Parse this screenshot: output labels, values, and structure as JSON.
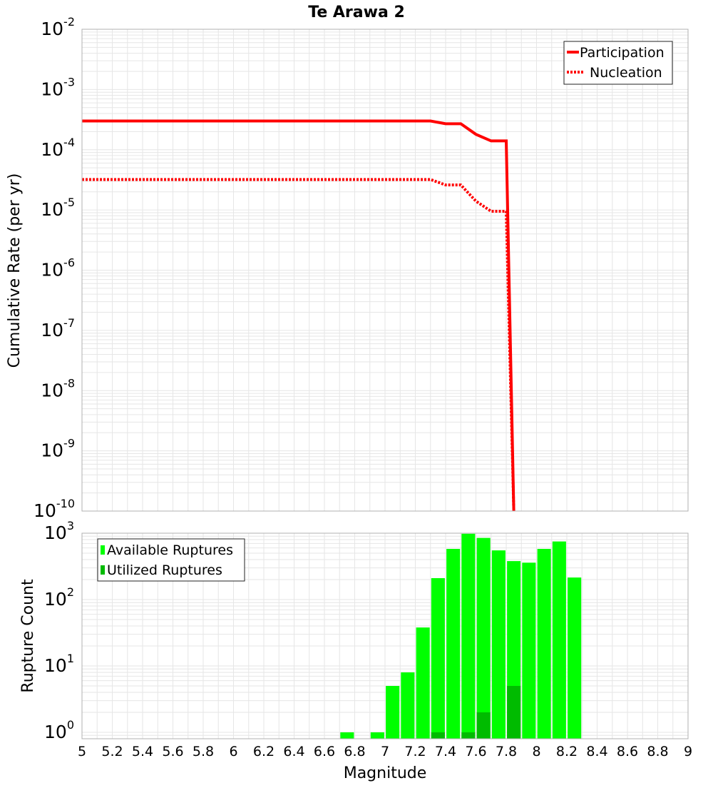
{
  "title": "Te Arawa 2",
  "colors": {
    "participation": "#ff0000",
    "nucleation": "#ff0000",
    "available": "#00ff00",
    "utilized": "#00bb00",
    "grid": "#e6e6e6",
    "frame": "#b0b0b0"
  },
  "chart_data": [
    {
      "type": "line",
      "title": "Te Arawa 2",
      "xlabel": "",
      "ylabel": "Cumulative Rate (per yr)",
      "xlim": [
        5,
        9
      ],
      "ylim": [
        1e-10,
        0.01
      ],
      "yscale": "log",
      "y_ticks": [
        {
          "base": "10",
          "exp": "-10"
        },
        {
          "base": "10",
          "exp": "-9"
        },
        {
          "base": "10",
          "exp": "-8"
        },
        {
          "base": "10",
          "exp": "-7"
        },
        {
          "base": "10",
          "exp": "-6"
        },
        {
          "base": "10",
          "exp": "-5"
        },
        {
          "base": "10",
          "exp": "-4"
        },
        {
          "base": "10",
          "exp": "-3"
        },
        {
          "base": "10",
          "exp": "-2"
        }
      ],
      "grid": true,
      "legend_position": "top-right",
      "series": [
        {
          "name": "Participation",
          "style": "solid",
          "x": [
            5.0,
            7.3,
            7.4,
            7.5,
            7.6,
            7.7,
            7.8,
            7.85
          ],
          "y": [
            0.0003,
            0.0003,
            0.00027,
            0.00027,
            0.00018,
            0.00014,
            0.00014,
            1e-10
          ]
        },
        {
          "name": "Nucleation",
          "style": "dotted",
          "x": [
            5.0,
            7.3,
            7.4,
            7.5,
            7.6,
            7.7,
            7.8,
            7.85
          ],
          "y": [
            3.2e-05,
            3.2e-05,
            2.6e-05,
            2.6e-05,
            1.4e-05,
            9.5e-06,
            9.5e-06,
            1e-10
          ]
        }
      ]
    },
    {
      "type": "bar",
      "xlabel": "Magnitude",
      "ylabel": "Rupture Count",
      "xlim": [
        5,
        9
      ],
      "ylim": [
        0.8,
        1000
      ],
      "yscale": "log",
      "y_ticks": [
        {
          "base": "10",
          "exp": "0"
        },
        {
          "base": "10",
          "exp": "1"
        },
        {
          "base": "10",
          "exp": "2"
        },
        {
          "base": "10",
          "exp": "3"
        }
      ],
      "x_ticks": [
        "5",
        "5.2",
        "5.4",
        "5.6",
        "5.8",
        "6",
        "6.2",
        "6.4",
        "6.6",
        "6.8",
        "7",
        "7.2",
        "7.4",
        "7.6",
        "7.8",
        "8",
        "8.2",
        "8.4",
        "8.6",
        "8.8",
        "9"
      ],
      "bar_width": 0.09,
      "grid": true,
      "legend_position": "top-left",
      "series": [
        {
          "name": "Available Ruptures",
          "x": [
            6.75,
            6.95,
            7.05,
            7.15,
            7.25,
            7.35,
            7.45,
            7.55,
            7.65,
            7.75,
            7.85,
            7.95,
            8.05,
            8.15,
            8.25
          ],
          "y": [
            1,
            1,
            5,
            8,
            38,
            210,
            580,
            980,
            850,
            550,
            380,
            360,
            580,
            750,
            215
          ]
        },
        {
          "name": "Utilized Ruptures",
          "x": [
            7.35,
            7.55,
            7.65,
            7.85
          ],
          "y": [
            1,
            1,
            2,
            5
          ]
        }
      ]
    }
  ]
}
